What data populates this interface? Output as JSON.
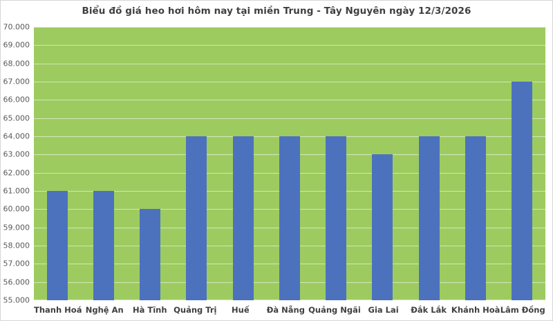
{
  "window": {
    "background": "#ffffff",
    "border_color": "#d6d6d6"
  },
  "chart_data": {
    "type": "bar",
    "title": "Biểu đồ giá heo hơi hôm nay tại miền Trung - Tây Nguyên ngày 12/3/2026",
    "categories": [
      "Thanh Hoá",
      "Nghệ An",
      "Hà Tĩnh",
      "Quảng Trị",
      "Huế",
      "Đà Nẵng",
      "Quảng Ngãi",
      "Gia Lai",
      "Đắk Lắk",
      "Khánh Hoà",
      "Lâm Đồng"
    ],
    "values": [
      61000,
      61000,
      60000,
      64000,
      64000,
      64000,
      64000,
      63000,
      64000,
      64000,
      67000
    ],
    "xlabel": "",
    "ylabel": "",
    "ylim": [
      55000,
      70000
    ],
    "ytick_step": 1000,
    "ytick_labels_top_to_bottom": [
      "70.000",
      "69.000",
      "68.000",
      "67.000",
      "66.000",
      "65.000",
      "64.000",
      "63.000",
      "62.000",
      "61.000",
      "60.000",
      "59.000",
      "58.000",
      "57.000",
      "56.000",
      "55.000"
    ],
    "grid": true,
    "legend": "none",
    "colors": {
      "plot_background": "#9dcb60",
      "bar": "#4c72be",
      "gridline": "rgba(255,255,255,0.55)",
      "title_text": "#3f3f3f",
      "ytick_text": "#595959",
      "xtick_text": "#3f3f3f"
    }
  }
}
